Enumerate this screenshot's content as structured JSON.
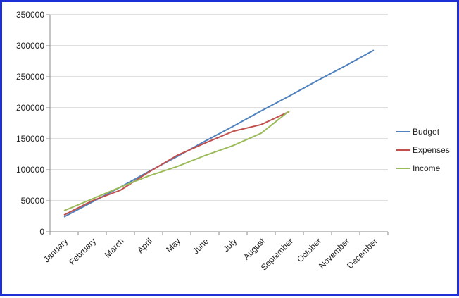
{
  "chart_data": {
    "type": "line",
    "title": "",
    "xlabel": "",
    "ylabel": "",
    "categories": [
      "January",
      "February",
      "March",
      "April",
      "May",
      "June",
      "July",
      "August",
      "September",
      "October",
      "November",
      "December"
    ],
    "ylim": [
      0,
      350000
    ],
    "yticks": [
      0,
      50000,
      100000,
      150000,
      200000,
      250000,
      300000,
      350000
    ],
    "ytick_labels": [
      "0",
      "50000",
      "100000",
      "150000",
      "200000",
      "250000",
      "300000",
      "350000"
    ],
    "grid": "horizontal",
    "legend_position": "right",
    "series": [
      {
        "name": "Budget",
        "color": "#4f81bd",
        "values": [
          24000,
          48000,
          72000,
          97000,
          121000,
          146000,
          170000,
          195000,
          219000,
          244000,
          268000,
          293000
        ]
      },
      {
        "name": "Expenses",
        "color": "#c0504d",
        "values": [
          27000,
          50000,
          67000,
          96000,
          123000,
          143000,
          162000,
          173000,
          194000,
          null,
          null,
          null
        ]
      },
      {
        "name": "Income",
        "color": "#9bbb59",
        "values": [
          34000,
          53000,
          72000,
          90000,
          105000,
          123000,
          139000,
          159000,
          195000,
          null,
          null,
          null
        ]
      }
    ]
  }
}
